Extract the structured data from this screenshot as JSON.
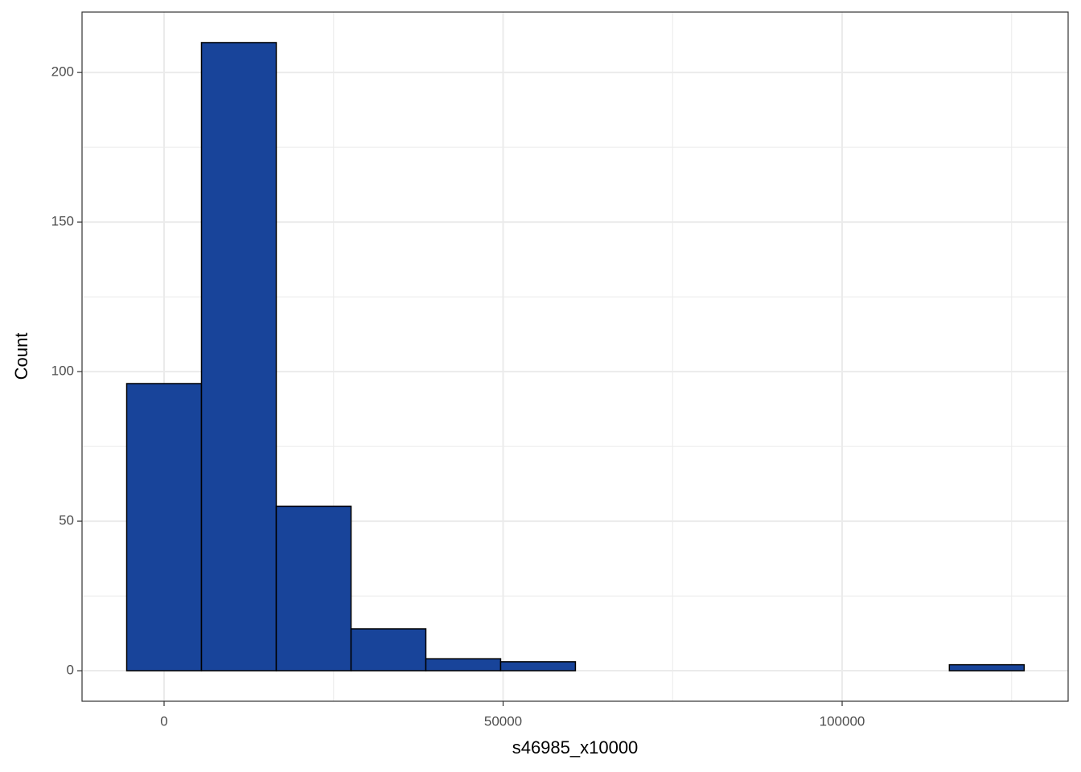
{
  "chart_data": {
    "type": "histogram",
    "x_label": "s46985_x10000",
    "y_label": "Count",
    "bins": [
      -5515,
      5515,
      16545,
      27575,
      38605,
      49635,
      60665,
      71695,
      82725,
      93755,
      104785,
      115815,
      126845
    ],
    "values": [
      96,
      210,
      55,
      14,
      4,
      3,
      0,
      0,
      0,
      0,
      0,
      2
    ],
    "color": "#18449a",
    "edge_color": "#000000",
    "xlim": [
      -12100,
      133330
    ],
    "ylim": [
      -10.2,
      220.2
    ],
    "xticks": [
      0,
      50000,
      100000
    ],
    "yticks": [
      0,
      50,
      100,
      150,
      200
    ],
    "x_minor_grid": [
      25000,
      75000,
      125000
    ],
    "y_minor_grid": [
      25,
      75,
      125,
      175
    ],
    "grid": true
  }
}
